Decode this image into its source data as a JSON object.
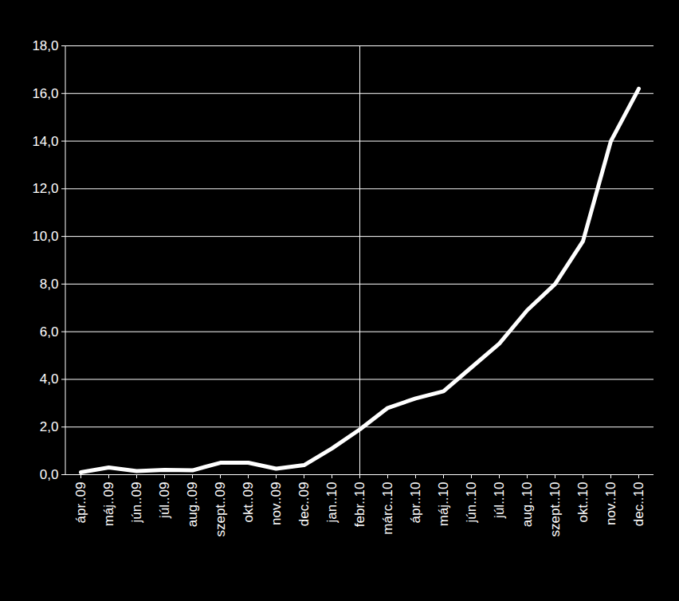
{
  "chart_data": {
    "type": "line",
    "categories": [
      "ápr..09",
      "máj..09",
      "jún..09",
      "júl..09",
      "aug..09",
      "szept..09",
      "okt..09",
      "nov..09",
      "dec..09",
      "jan..10",
      "febr..10",
      "márc..10",
      "ápr..10",
      "máj..10",
      "jún..10",
      "júl..10",
      "aug..10",
      "szept..10",
      "okt..10",
      "nov..10",
      "dec..10"
    ],
    "values": [
      0.1,
      0.3,
      0.15,
      0.2,
      0.18,
      0.5,
      0.5,
      0.25,
      0.4,
      1.1,
      1.9,
      2.8,
      3.2,
      3.5,
      4.5,
      5.5,
      6.9,
      8.0,
      9.8,
      14.0,
      16.2
    ],
    "color": "#ffffff",
    "ylim": [
      0,
      18
    ],
    "yticks": [
      {
        "value": 0,
        "label": "0,0"
      },
      {
        "value": 2,
        "label": "2,0"
      },
      {
        "value": 4,
        "label": "4,0"
      },
      {
        "value": 6,
        "label": "6,0"
      },
      {
        "value": 8,
        "label": "8,0"
      },
      {
        "value": 10,
        "label": "10,0"
      },
      {
        "value": 12,
        "label": "12,0"
      },
      {
        "value": 14,
        "label": "14,0"
      },
      {
        "value": 16,
        "label": "16,0"
      },
      {
        "value": 18,
        "label": "18,0"
      }
    ],
    "grid": true
  }
}
